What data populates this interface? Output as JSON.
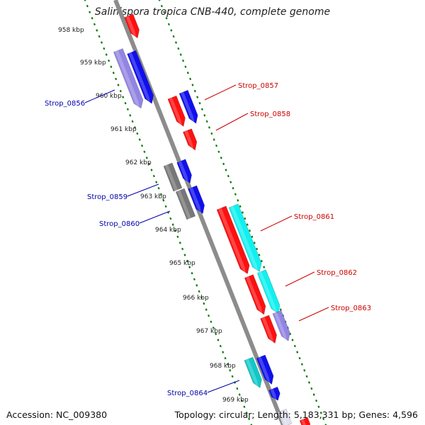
{
  "title": "Salinispora tropica CNB-440, complete genome",
  "footer": {
    "accession": "Accession: NC_009380",
    "topology": "Topology: circular; Length: 5,183,331 bp; Genes: 4,596"
  },
  "ticks": [
    "958 kbp",
    "959 kbp",
    "960 kbp",
    "961 kbp",
    "962 kbp",
    "963 kbp",
    "964 kbp",
    "965 kbp",
    "966 kbp",
    "967 kbp",
    "968 kbp",
    "969 kbp"
  ],
  "gene_labels": [
    {
      "name": "Strop_0856",
      "color": "#0000aa"
    },
    {
      "name": "Strop_0857",
      "color": "#cc0000"
    },
    {
      "name": "Strop_0858",
      "color": "#cc0000"
    },
    {
      "name": "Strop_0859",
      "color": "#0000aa"
    },
    {
      "name": "Strop_0860",
      "color": "#0000aa"
    },
    {
      "name": "Strop_0861",
      "color": "#cc0000"
    },
    {
      "name": "Strop_0862",
      "color": "#cc0000"
    },
    {
      "name": "Strop_0863",
      "color": "#cc0000"
    },
    {
      "name": "Strop_0864",
      "color": "#0000aa"
    }
  ],
  "colors": {
    "backbone": "#8c8c8c",
    "tick_dots": "#0a7a0a",
    "red": "#ff1010",
    "blue": "#1010ee",
    "cyan": "#10f0f0",
    "purple": "#8070dd",
    "gray": "#707070",
    "teal": "#10c8c8"
  }
}
